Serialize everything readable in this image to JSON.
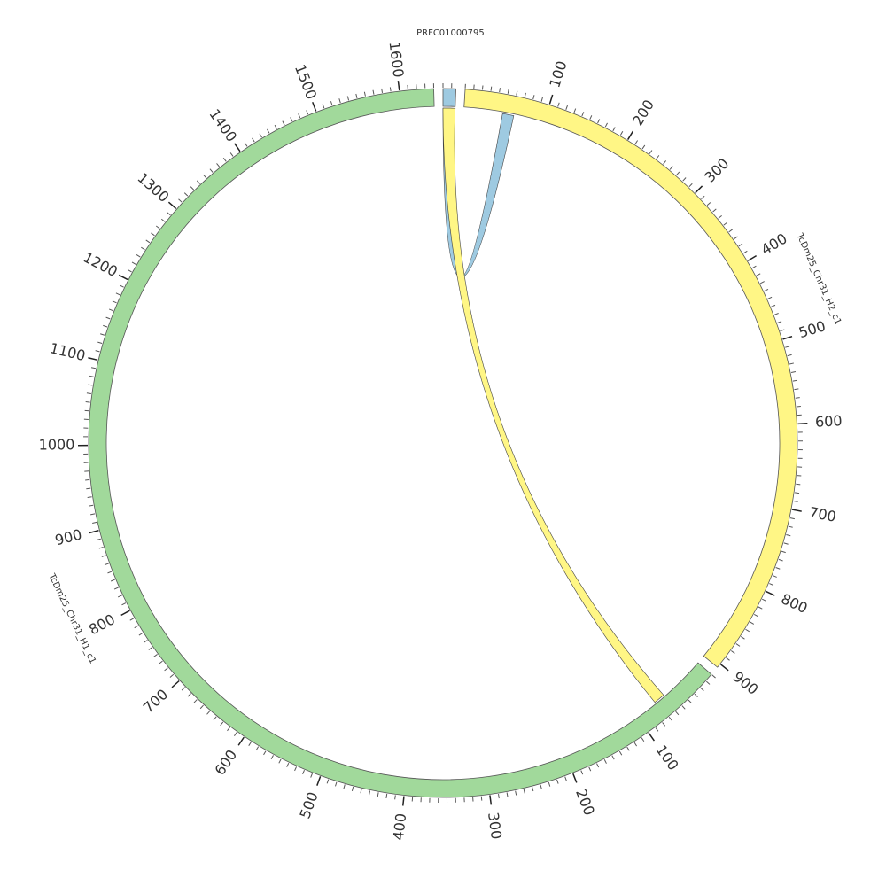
{
  "chart_data": {
    "type": "circos",
    "segments": [
      {
        "name": "PRFC01000795",
        "color": "#9ecae1",
        "length": 15,
        "ticks": []
      },
      {
        "name": "TcDm25_Chr31_H2_c1",
        "color": "#fff685",
        "length": 905,
        "ticks": [
          100,
          200,
          300,
          400,
          500,
          600,
          700,
          800,
          900
        ]
      },
      {
        "name": "TcDm25_Chr31_H1_c1",
        "color": "#a1d99b",
        "length": 1640,
        "ticks": [
          100,
          200,
          300,
          400,
          500,
          600,
          700,
          800,
          900,
          1000,
          1100,
          1200,
          1300,
          1400,
          1500,
          1600
        ]
      }
    ],
    "minor_tick_step": 10,
    "links": [
      {
        "color": "#9ecae1",
        "source": {
          "segment": 0,
          "start": 0,
          "end": 15
        },
        "target": {
          "segment": 1,
          "start": 48,
          "end": 62
        }
      },
      {
        "color": "#fff685",
        "source": {
          "segment": 0,
          "start": 0,
          "end": 15
        },
        "target": {
          "segment": 2,
          "start": 58,
          "end": 72
        }
      }
    ]
  }
}
